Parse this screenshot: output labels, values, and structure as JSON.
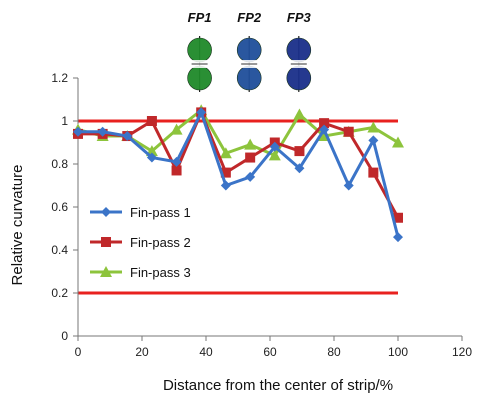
{
  "chart_data": {
    "type": "line",
    "xlabel": "Distance from the center of strip/%",
    "ylabel": "Relative curvature",
    "xlim": [
      0,
      120
    ],
    "ylim": [
      0,
      1.2
    ],
    "x_ticks": [
      "0",
      "20",
      "40",
      "60",
      "80",
      "100",
      "120"
    ],
    "y_ticks": [
      "0",
      "0.2",
      "0.4",
      "0.6",
      "0.8",
      "1",
      "1.2"
    ],
    "grid": false,
    "legend_position": "left-center",
    "reference_lines": [
      {
        "y": 1.0,
        "color": "#e8211f"
      },
      {
        "y": 0.2,
        "color": "#e8211f"
      }
    ],
    "roll_pass_labels": [
      {
        "label": "FP1",
        "x": 38,
        "color": "#1f8a2a"
      },
      {
        "label": "FP2",
        "x": 53.5,
        "color": "#1f4f9a"
      },
      {
        "label": "FP3",
        "x": 69,
        "color": "#1a2f8a"
      }
    ],
    "series": [
      {
        "name": "Fin-pass 1",
        "color": "#3b74c8",
        "marker": "diamond",
        "x": [
          0,
          7.7,
          15.4,
          23.1,
          30.8,
          38.5,
          46.2,
          53.8,
          61.5,
          69.2,
          76.9,
          84.6,
          92.3,
          100
        ],
        "values": [
          0.95,
          0.95,
          0.93,
          0.83,
          0.81,
          1.04,
          0.7,
          0.74,
          0.88,
          0.78,
          0.96,
          0.7,
          0.91,
          0.46
        ]
      },
      {
        "name": "Fin-pass 2",
        "color": "#c0282a",
        "marker": "square",
        "x": [
          0,
          7.7,
          15.4,
          23.1,
          30.8,
          38.5,
          46.2,
          53.8,
          61.5,
          69.2,
          76.9,
          84.6,
          92.3,
          100
        ],
        "values": [
          0.94,
          0.94,
          0.93,
          1.0,
          0.77,
          1.04,
          0.76,
          0.83,
          0.9,
          0.86,
          0.99,
          0.95,
          0.76,
          0.55
        ]
      },
      {
        "name": "Fin-pass 3",
        "color": "#8dc43c",
        "marker": "triangle",
        "x": [
          0,
          7.7,
          15.4,
          23.1,
          30.8,
          38.5,
          46.2,
          53.8,
          61.5,
          69.2,
          76.9,
          84.6,
          92.3,
          100
        ],
        "values": [
          0.96,
          0.93,
          0.93,
          0.86,
          0.96,
          1.05,
          0.85,
          0.89,
          0.84,
          1.03,
          0.93,
          0.95,
          0.97,
          0.9
        ]
      }
    ]
  }
}
